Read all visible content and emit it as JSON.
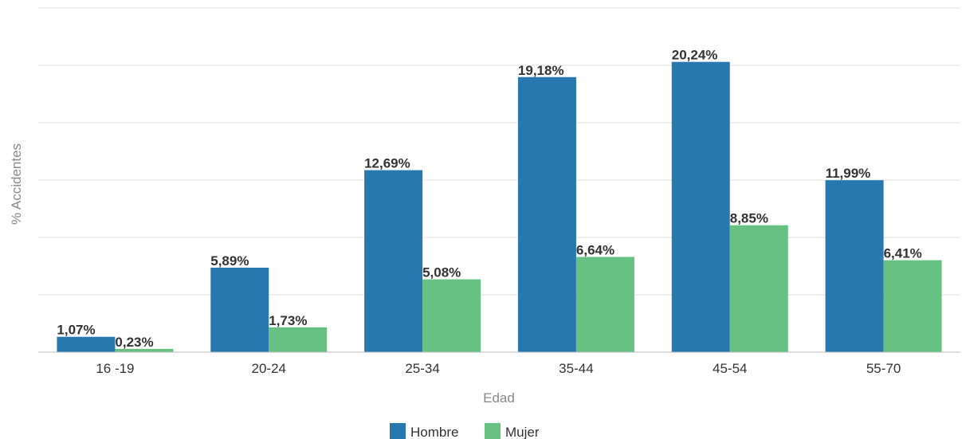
{
  "chart_data": {
    "type": "bar",
    "xlabel": "Edad",
    "ylabel": "% Accidentes",
    "categories": [
      "16 -19",
      "20-24",
      "25-34",
      "35-44",
      "45-54",
      "55-70"
    ],
    "ylim": [
      0,
      24
    ],
    "grid": true,
    "legend_position": "bottom",
    "series": [
      {
        "name": "Hombre",
        "color": "#2878b0",
        "values": [
          1.07,
          5.89,
          12.69,
          19.18,
          20.24,
          11.99
        ],
        "labels": [
          "1,07%",
          "5,89%",
          "12,69%",
          "19,18%",
          "20,24%",
          "11,99%"
        ]
      },
      {
        "name": "Mujer",
        "color": "#67c182",
        "values": [
          0.23,
          1.73,
          5.08,
          6.64,
          8.85,
          6.41
        ],
        "labels": [
          "0,23%",
          "1,73%",
          "5,08%",
          "6,64%",
          "8,85%",
          "6,41%"
        ]
      }
    ]
  }
}
